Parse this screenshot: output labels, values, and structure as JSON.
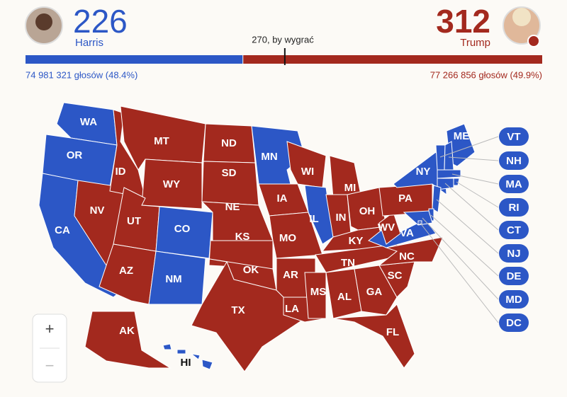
{
  "header": {
    "harris": {
      "name": "Harris",
      "electoral_votes": 226,
      "popular_vote": "74 981 321 głosów (48.4%)",
      "color": "#2c57c6"
    },
    "trump": {
      "name": "Trump",
      "electoral_votes": 312,
      "popular_vote": "77 266 856 głosów (49.9%)",
      "color": "#a3291e"
    },
    "threshold": {
      "value": 270,
      "label": "270, by wygrać"
    }
  },
  "map": {
    "party_colors": {
      "D": "#2c57c6",
      "R": "#a3291e"
    },
    "states": [
      {
        "label": "WA",
        "party": "D"
      },
      {
        "label": "OR",
        "party": "D"
      },
      {
        "label": "CA",
        "party": "D"
      },
      {
        "label": "NV",
        "party": "R"
      },
      {
        "label": "ID",
        "party": "R"
      },
      {
        "label": "MT",
        "party": "R"
      },
      {
        "label": "WY",
        "party": "R"
      },
      {
        "label": "UT",
        "party": "R"
      },
      {
        "label": "AZ",
        "party": "R"
      },
      {
        "label": "CO",
        "party": "D"
      },
      {
        "label": "NM",
        "party": "D"
      },
      {
        "label": "ND",
        "party": "R"
      },
      {
        "label": "SD",
        "party": "R"
      },
      {
        "label": "NE",
        "party": "R"
      },
      {
        "label": "KS",
        "party": "R"
      },
      {
        "label": "OK",
        "party": "R"
      },
      {
        "label": "TX",
        "party": "R"
      },
      {
        "label": "MN",
        "party": "D"
      },
      {
        "label": "IA",
        "party": "R"
      },
      {
        "label": "MO",
        "party": "R"
      },
      {
        "label": "AR",
        "party": "R"
      },
      {
        "label": "LA",
        "party": "R"
      },
      {
        "label": "WI",
        "party": "R"
      },
      {
        "label": "IL",
        "party": "D"
      },
      {
        "label": "MI",
        "party": "R"
      },
      {
        "label": "IN",
        "party": "R"
      },
      {
        "label": "OH",
        "party": "R"
      },
      {
        "label": "KY",
        "party": "R"
      },
      {
        "label": "TN",
        "party": "R"
      },
      {
        "label": "MS",
        "party": "R"
      },
      {
        "label": "AL",
        "party": "R"
      },
      {
        "label": "GA",
        "party": "R"
      },
      {
        "label": "FL",
        "party": "R"
      },
      {
        "label": "SC",
        "party": "R"
      },
      {
        "label": "NC",
        "party": "R"
      },
      {
        "label": "VA",
        "party": "D"
      },
      {
        "label": "WV",
        "party": "R"
      },
      {
        "label": "PA",
        "party": "R"
      },
      {
        "label": "NY",
        "party": "D"
      },
      {
        "label": "ME",
        "party": "D"
      },
      {
        "label": "AK",
        "party": "R"
      },
      {
        "label": "HI",
        "party": "D"
      },
      {
        "label": "VT",
        "party": "D"
      },
      {
        "label": "NH",
        "party": "D"
      },
      {
        "label": "MA",
        "party": "D"
      },
      {
        "label": "RI",
        "party": "D"
      },
      {
        "label": "CT",
        "party": "D"
      },
      {
        "label": "NJ",
        "party": "D"
      },
      {
        "label": "DE",
        "party": "D"
      },
      {
        "label": "MD",
        "party": "D"
      },
      {
        "label": "DC",
        "party": "D"
      }
    ]
  },
  "zoom": {
    "in": "+",
    "out": "−"
  }
}
